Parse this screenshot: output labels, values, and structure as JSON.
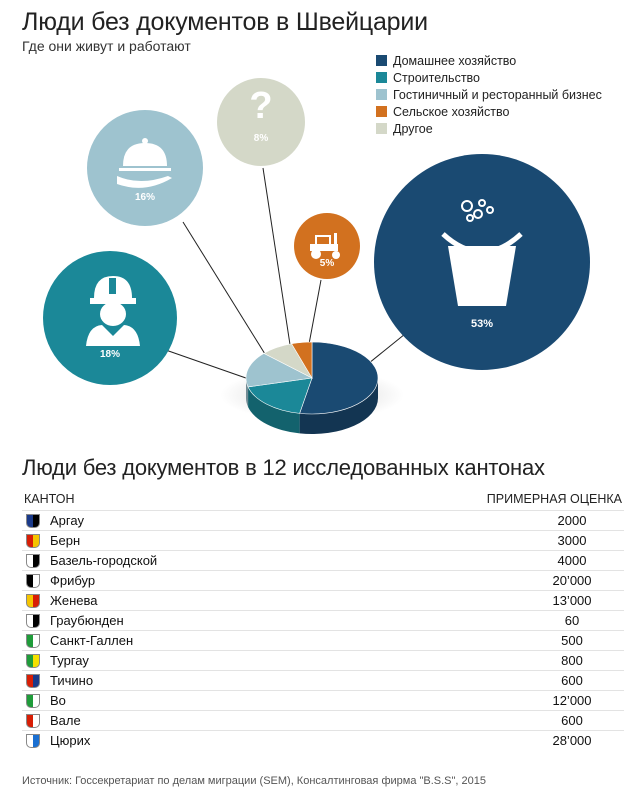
{
  "header": {
    "title": "Люди без документов в Швейцарии",
    "subtitle": "Где они живут и работают"
  },
  "chart_data": {
    "type": "pie",
    "title": "Люди без документов в Швейцарии",
    "subtitle": "Где они живут и работают",
    "categories": [
      "Домашнее хозяйство",
      "Строительство",
      "Гостиничный и ресторанный бизнес",
      "Сельское хозяйство",
      "Другое"
    ],
    "values": [
      53,
      18,
      16,
      5,
      8
    ],
    "labels": [
      "53%",
      "18%",
      "16%",
      "5%",
      "8%"
    ],
    "colors": [
      "#1a4a72",
      "#1b8898",
      "#9ec3cf",
      "#d2711f",
      "#d4d8c8"
    ],
    "icons": [
      "bucket-icon",
      "worker-helmet-icon",
      "serving-cloche-icon",
      "tractor-icon",
      "question-mark-icon"
    ],
    "other_symbol": "?",
    "legend_position": "top-right"
  },
  "table": {
    "title": "Люди без документов в 12 исследованных кантонах",
    "col_canton": "КАНТОН",
    "col_estimate": "ПРИМЕРНАЯ ОЦЕНКА",
    "rows": [
      {
        "name": "Аргау",
        "value": "2000",
        "flag": "canton-aargau-flag-icon"
      },
      {
        "name": "Берн",
        "value": "3000",
        "flag": "canton-bern-flag-icon"
      },
      {
        "name": "Базель-городской",
        "value": "4000",
        "flag": "canton-basel-flag-icon"
      },
      {
        "name": "Фрибур",
        "value": "20’000",
        "flag": "canton-fribourg-flag-icon"
      },
      {
        "name": "Женева",
        "value": "13’000",
        "flag": "canton-geneva-flag-icon"
      },
      {
        "name": "Граубюнден",
        "value": "60",
        "flag": "canton-graubunden-flag-icon"
      },
      {
        "name": "Санкт-Галлен",
        "value": "500",
        "flag": "canton-st-gallen-flag-icon"
      },
      {
        "name": "Тургау",
        "value": "800",
        "flag": "canton-thurgau-flag-icon"
      },
      {
        "name": "Тичино",
        "value": "600",
        "flag": "canton-ticino-flag-icon"
      },
      {
        "name": "Во",
        "value": "12’000",
        "flag": "canton-vaud-flag-icon"
      },
      {
        "name": "Вале",
        "value": "600",
        "flag": "canton-valais-flag-icon"
      },
      {
        "name": "Цюрих",
        "value": "28’000",
        "flag": "canton-zurich-flag-icon"
      }
    ]
  },
  "footer": {
    "source": "Источник: Госсекретариат по делам миграции (SEM), Консалтинговая фирма \"B.S.S\", 2015"
  }
}
